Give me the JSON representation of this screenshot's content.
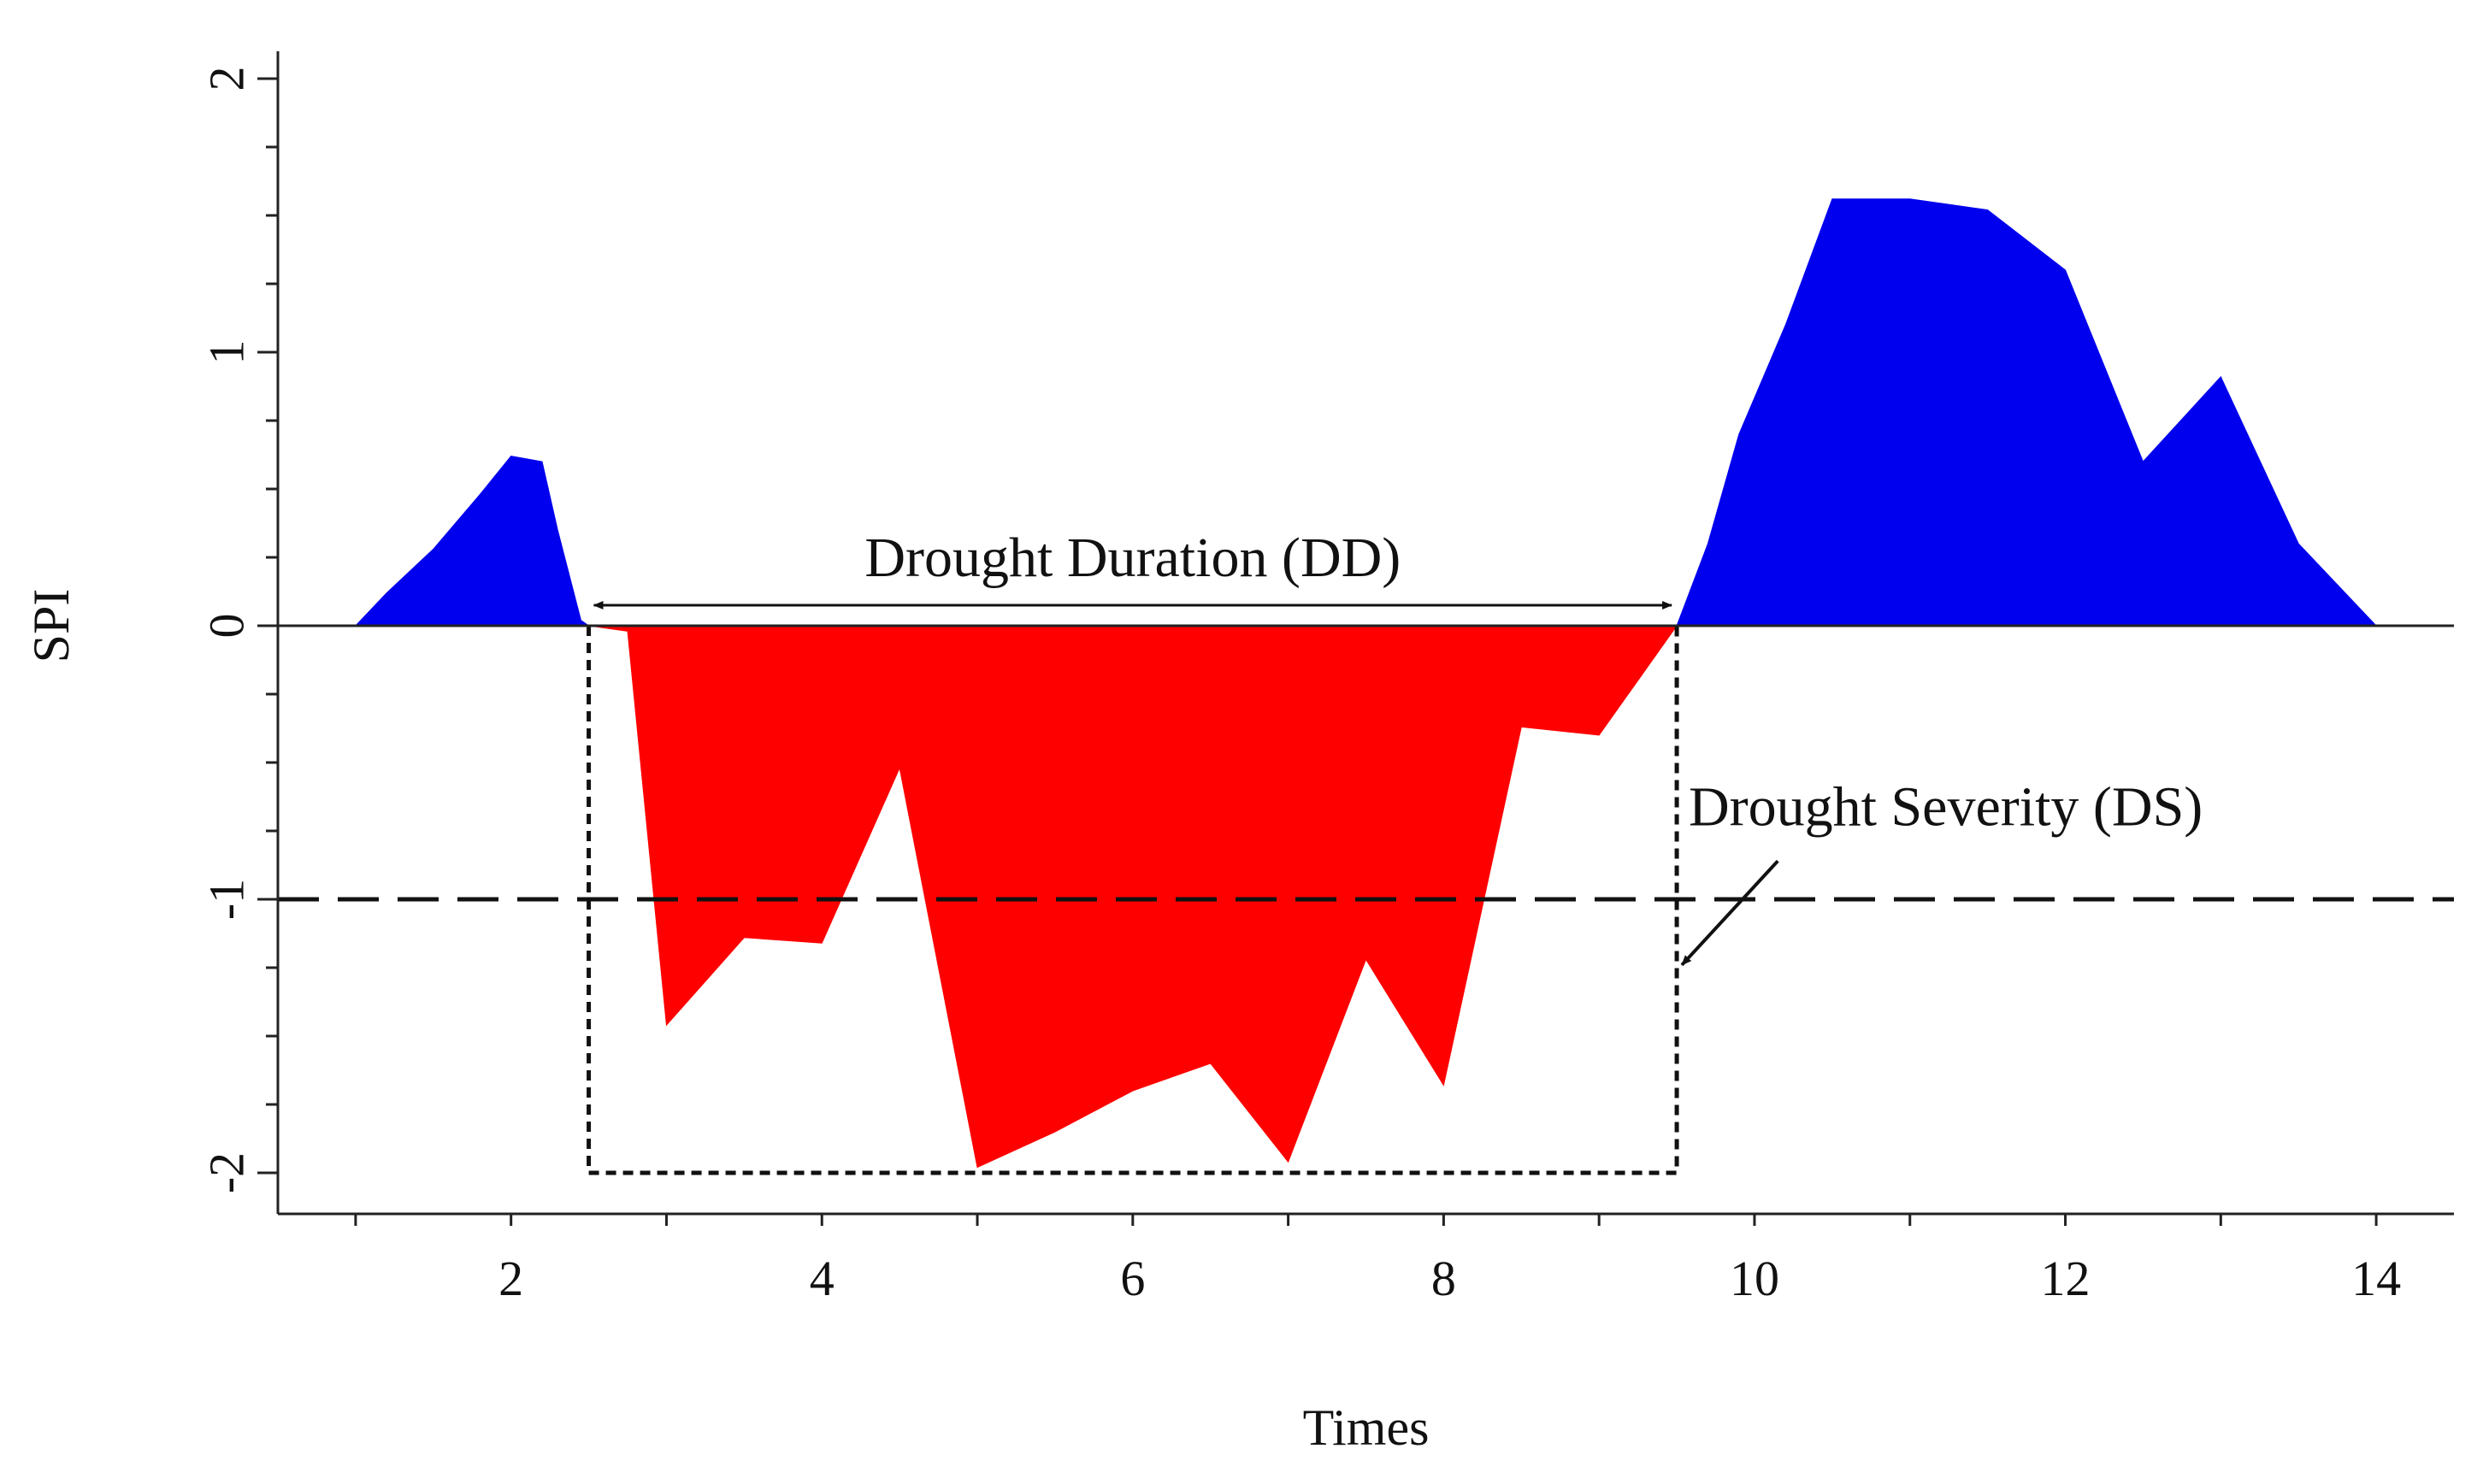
{
  "chart_data": {
    "type": "area",
    "title": "",
    "xlabel": "Times",
    "ylabel": "SPI",
    "xlim": [
      0.5,
      14.5
    ],
    "ylim": [
      -2.15,
      2.1
    ],
    "x_ticks": [
      2,
      4,
      6,
      8,
      10,
      12,
      14
    ],
    "y_ticks": [
      -2,
      -1,
      0,
      1,
      2
    ],
    "y_tick_labels": [
      "-2",
      "-1",
      "0",
      "1",
      "2"
    ],
    "grid": false,
    "colors": {
      "positive": "#0000ee",
      "negative": "#ff0000",
      "axis": "#222222"
    },
    "series": [
      {
        "name": "SPI",
        "points": [
          [
            1.0,
            0.0
          ],
          [
            1.2,
            0.12
          ],
          [
            1.5,
            0.28
          ],
          [
            1.8,
            0.48
          ],
          [
            2.0,
            0.62
          ],
          [
            2.2,
            0.6
          ],
          [
            2.3,
            0.35
          ],
          [
            2.45,
            0.02
          ],
          [
            2.5,
            0.0
          ],
          [
            2.75,
            -0.02
          ],
          [
            3.0,
            -1.46
          ],
          [
            3.5,
            -1.14
          ],
          [
            4.0,
            -1.16
          ],
          [
            4.5,
            -0.52
          ],
          [
            5.0,
            -1.98
          ],
          [
            5.5,
            -1.85
          ],
          [
            6.0,
            -1.7
          ],
          [
            6.5,
            -1.6
          ],
          [
            7.0,
            -1.96
          ],
          [
            7.5,
            -1.22
          ],
          [
            8.0,
            -1.68
          ],
          [
            8.5,
            -0.37
          ],
          [
            9.0,
            -0.4
          ],
          [
            9.2,
            -0.24
          ],
          [
            9.5,
            0.0
          ],
          [
            9.7,
            0.3
          ],
          [
            9.9,
            0.7
          ],
          [
            10.2,
            1.1
          ],
          [
            10.5,
            1.56
          ],
          [
            11.0,
            1.56
          ],
          [
            11.5,
            1.52
          ],
          [
            12.0,
            1.3
          ],
          [
            12.5,
            0.6
          ],
          [
            13.0,
            0.91
          ],
          [
            13.5,
            0.3
          ],
          [
            14.0,
            0.0
          ]
        ]
      }
    ],
    "threshold": {
      "y": -1,
      "style": "dashed"
    },
    "drought_event": {
      "start": 2.5,
      "end": 9.5,
      "bottom": -2
    },
    "annotations": {
      "duration_label": "Drought Duration (DD)",
      "severity_label": "Drought Severity (DS)"
    }
  }
}
